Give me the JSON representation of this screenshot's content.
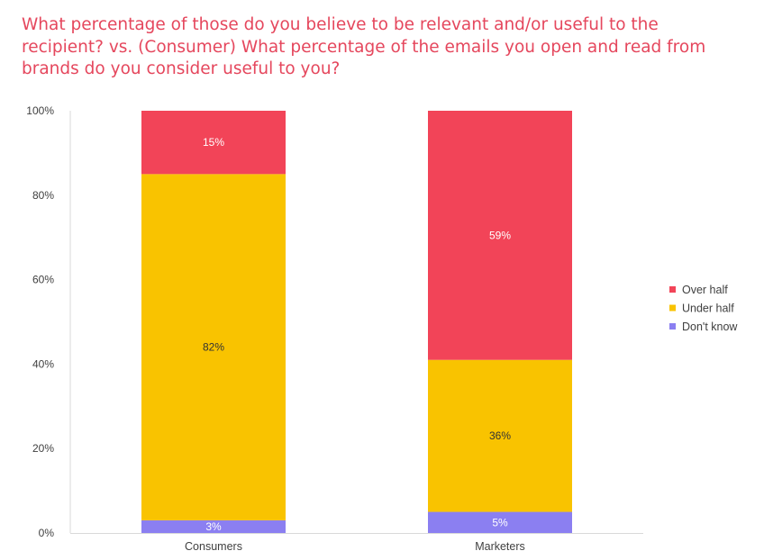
{
  "chart_data": {
    "type": "bar",
    "stacked": true,
    "title": "What percentage of those do you believe to be relevant and/or useful to the recipient? vs. (Consumer) What percentage of the emails you open and read from brands do you consider useful to you?",
    "xlabel": "",
    "ylabel": "",
    "categories": [
      "Consumers",
      "Marketers"
    ],
    "series": [
      {
        "name": "Don't know",
        "values": [
          3,
          5
        ],
        "labels": [
          "3%",
          "5%"
        ],
        "color": "#8b7ff1",
        "label_color": "#ffffff"
      },
      {
        "name": "Under half",
        "values": [
          82,
          36
        ],
        "labels": [
          "82%",
          "36%"
        ],
        "color": "#f9c300",
        "label_color": "#333333"
      },
      {
        "name": "Over half",
        "values": [
          15,
          59
        ],
        "labels": [
          "15%",
          "59%"
        ],
        "color": "#f24458",
        "label_color": "#ffffff"
      }
    ],
    "legend_order": [
      "Over half",
      "Under half",
      "Don't know"
    ],
    "legend_position": "right",
    "ylim": [
      0,
      100
    ],
    "yticks": [
      0,
      20,
      40,
      60,
      80,
      100
    ],
    "ytick_labels": [
      "0%",
      "20%",
      "40%",
      "60%",
      "80%",
      "100%"
    ],
    "grid": false
  }
}
